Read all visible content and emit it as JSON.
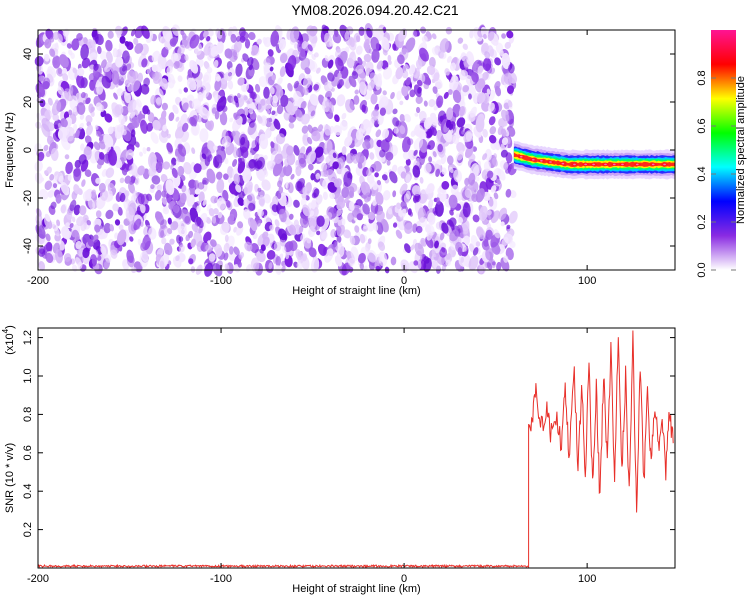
{
  "title": "YM08.2026.094.20.42.C21",
  "chart_data": [
    {
      "type": "heatmap",
      "xlabel": "Height of straight line (km)",
      "ylabel": "Frequency (Hz)",
      "xlim": [
        -200,
        148
      ],
      "ylim": [
        -50,
        50
      ],
      "xticks": [
        "-200",
        "-100",
        "0",
        "100"
      ],
      "yticks": [
        "40",
        "20",
        "0",
        "-20",
        "-40"
      ],
      "signal_onset_km": 60,
      "signal_band": {
        "x_range": [
          60,
          148
        ],
        "frequency_hz": [
          {
            "x": 60,
            "f": -2
          },
          {
            "x": 65,
            "f": -3
          },
          {
            "x": 70,
            "f": -4
          },
          {
            "x": 80,
            "f": -5
          },
          {
            "x": 90,
            "f": -6
          },
          {
            "x": 110,
            "f": -6
          },
          {
            "x": 130,
            "f": -6
          },
          {
            "x": 148,
            "f": -6
          }
        ]
      },
      "colorbar": {
        "label": "Normalized spectral amplitude",
        "range": [
          0,
          1
        ],
        "ticks": [
          "0.0",
          "0.2",
          "0.4",
          "0.6",
          "0.8"
        ],
        "colormap": [
          "#ffffff",
          "#8a2be2",
          "#0000ff",
          "#00ffff",
          "#00ff00",
          "#ffff00",
          "#ff0000",
          "#ff1493"
        ]
      },
      "noise_color": "#7b1fe0"
    },
    {
      "type": "line",
      "xlabel": "Height of straight line (km)",
      "ylabel": "SNR (10 * v/v)",
      "scale_label": "(x10",
      "scale_exp": "4",
      "scale_close": ")",
      "xlim": [
        -200,
        148
      ],
      "ylim": [
        0,
        1.25
      ],
      "xticks": [
        "-200",
        "-100",
        "0",
        "100"
      ],
      "yticks": [
        "1.2",
        "1.0",
        "0.8",
        "0.6",
        "0.4",
        "0.2"
      ],
      "series": [
        {
          "color": "#e8302a",
          "segments": [
            {
              "x_range": [
                -200,
                68
              ],
              "level": 0.01,
              "spread": 0.01
            },
            {
              "x_range": [
                68,
                148
              ],
              "points": [
                {
                  "x": 68,
                  "y": 0.72
                },
                {
                  "x": 70,
                  "y": 0.78
                },
                {
                  "x": 72,
                  "y": 0.92
                },
                {
                  "x": 75,
                  "y": 0.73
                },
                {
                  "x": 78,
                  "y": 0.85
                },
                {
                  "x": 80,
                  "y": 0.68
                },
                {
                  "x": 83,
                  "y": 0.8
                },
                {
                  "x": 86,
                  "y": 0.62
                },
                {
                  "x": 88,
                  "y": 0.95
                },
                {
                  "x": 90,
                  "y": 0.58
                },
                {
                  "x": 93,
                  "y": 1.0
                },
                {
                  "x": 95,
                  "y": 0.52
                },
                {
                  "x": 97,
                  "y": 0.95
                },
                {
                  "x": 99,
                  "y": 0.48
                },
                {
                  "x": 101,
                  "y": 1.08
                },
                {
                  "x": 103,
                  "y": 0.42
                },
                {
                  "x": 105,
                  "y": 0.95
                },
                {
                  "x": 107,
                  "y": 0.35
                },
                {
                  "x": 109,
                  "y": 1.02
                },
                {
                  "x": 111,
                  "y": 0.55
                },
                {
                  "x": 113,
                  "y": 1.15
                },
                {
                  "x": 115,
                  "y": 0.4
                },
                {
                  "x": 117,
                  "y": 1.25
                },
                {
                  "x": 119,
                  "y": 0.5
                },
                {
                  "x": 121,
                  "y": 1.0
                },
                {
                  "x": 123,
                  "y": 0.38
                },
                {
                  "x": 125,
                  "y": 1.22
                },
                {
                  "x": 127,
                  "y": 0.28
                },
                {
                  "x": 129,
                  "y": 1.05
                },
                {
                  "x": 131,
                  "y": 0.45
                },
                {
                  "x": 133,
                  "y": 0.9
                },
                {
                  "x": 135,
                  "y": 0.55
                },
                {
                  "x": 137,
                  "y": 0.85
                },
                {
                  "x": 139,
                  "y": 0.6
                },
                {
                  "x": 141,
                  "y": 0.78
                },
                {
                  "x": 143,
                  "y": 0.5
                },
                {
                  "x": 145,
                  "y": 0.82
                },
                {
                  "x": 147,
                  "y": 0.65
                }
              ]
            }
          ]
        }
      ]
    }
  ]
}
